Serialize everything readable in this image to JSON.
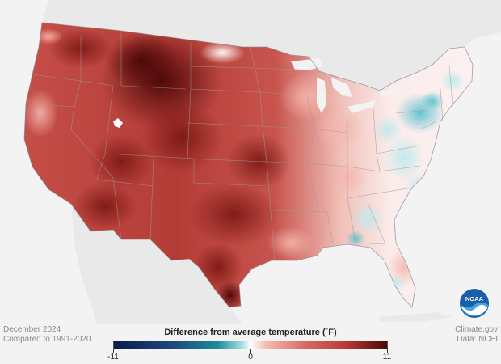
{
  "map": {
    "land_color": "#ebebeb",
    "ocean_color": "#f3f3f3",
    "border_color": "#9a9a9a"
  },
  "footer": {
    "left_line1": "December 2024",
    "left_line2": "Compared to 1991-2020",
    "right_line1": "Climate.gov",
    "right_line2": "Data: NCEI"
  },
  "legend": {
    "title": "Difference from average temperature  (˚F)",
    "min_label": "-11",
    "mid_label": "0",
    "max_label": "11",
    "colors": [
      "#0c1a4e",
      "#1d8d9a",
      "#ffffff",
      "#d96a60",
      "#4a0a0a"
    ]
  },
  "logo": {
    "text": "NOAA",
    "icon": "noaa-logo-icon"
  }
}
